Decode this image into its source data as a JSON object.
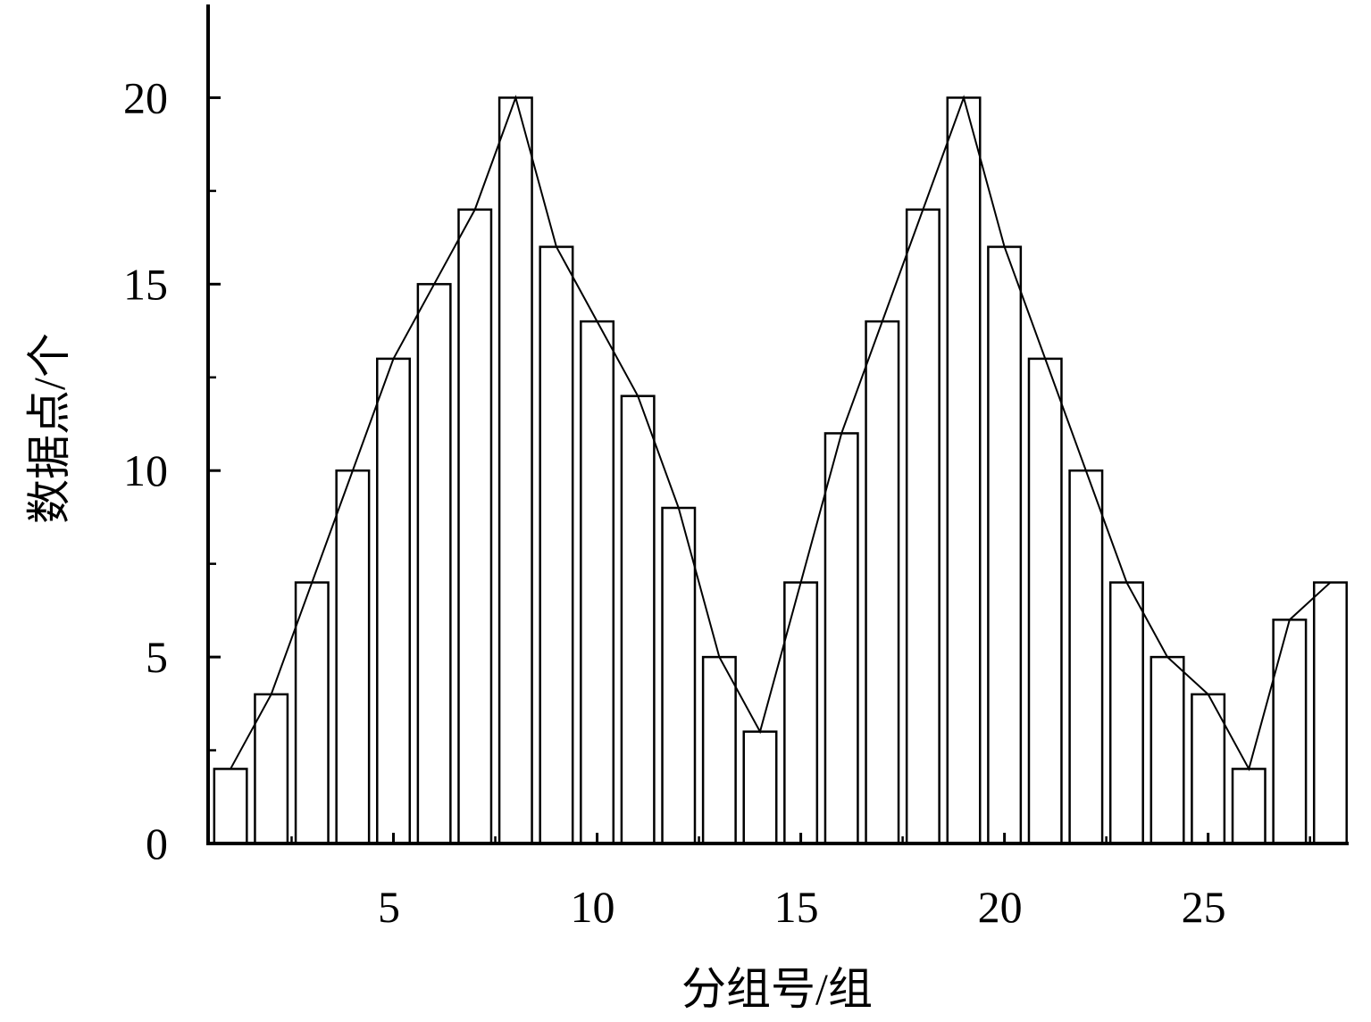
{
  "chart_data": {
    "type": "bar",
    "x_label": "分组号/组",
    "y_label": "数据点/个",
    "x": [
      1,
      2,
      3,
      4,
      5,
      6,
      7,
      8,
      9,
      10,
      11,
      12,
      13,
      14,
      15,
      16,
      17,
      18,
      19,
      20,
      21,
      22,
      23,
      24,
      25,
      26,
      27,
      28
    ],
    "values": [
      2,
      4,
      7,
      10,
      13,
      15,
      17,
      20,
      16,
      14,
      12,
      9,
      5,
      3,
      7,
      11,
      14,
      17,
      20,
      16,
      13,
      10,
      7,
      5,
      4,
      2,
      6,
      7
    ],
    "bar_width": 0.8,
    "bar_fill": "#ffffff",
    "color": "#000000",
    "line_overlay": true,
    "xlim": [
      0.45,
      28.45
    ],
    "xticks": [
      5,
      10,
      15,
      20,
      25
    ],
    "xminorticks": [
      2.5,
      7.5,
      12.5,
      17.5,
      22.5,
      27.5
    ],
    "ylim": [
      0,
      22.5
    ],
    "yticks": [
      0,
      5,
      10,
      15,
      20
    ],
    "yminorticks": [
      2.5,
      7.5,
      12.5,
      17.5
    ],
    "grid": false
  }
}
